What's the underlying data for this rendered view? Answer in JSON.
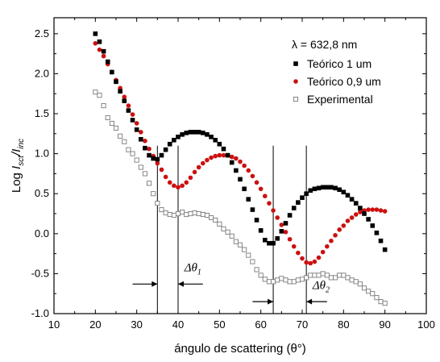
{
  "chart_data": {
    "type": "scatter",
    "title": "",
    "xlabel": "ángulo de scattering (θ°)",
    "ylabel": "Log I_sct/I_inc",
    "xlim": [
      10,
      100
    ],
    "ylim": [
      -1.0,
      2.7
    ],
    "x_ticks": [
      "10",
      "20",
      "30",
      "40",
      "50",
      "60",
      "70",
      "80",
      "90",
      "100"
    ],
    "y_ticks": [
      "-1.0",
      "-0.5",
      "0.0",
      "0.5",
      "1.0",
      "1.5",
      "2.0",
      "2.5"
    ],
    "grid": false,
    "legend": {
      "position": "top-right",
      "header": "λ = 632,8 nm",
      "entries": [
        "Teórico 1 um",
        "Teórico 0,9 um",
        "Experimental"
      ]
    },
    "series": [
      {
        "name": "Teórico 1 um",
        "marker": "filled-square",
        "color": "#000000",
        "x": [
          20,
          21,
          22,
          23,
          24,
          25,
          26,
          27,
          28,
          29,
          30,
          31,
          32,
          33,
          34,
          35,
          36,
          37,
          38,
          39,
          40,
          41,
          42,
          43,
          44,
          45,
          46,
          47,
          48,
          49,
          50,
          51,
          52,
          53,
          54,
          55,
          56,
          57,
          58,
          59,
          60,
          61,
          62,
          63,
          64,
          65,
          66,
          67,
          68,
          69,
          70,
          71,
          72,
          73,
          74,
          75,
          76,
          77,
          78,
          79,
          80,
          81,
          82,
          83,
          84,
          85,
          86,
          87,
          88,
          89,
          90
        ],
        "y": [
          2.5,
          2.4,
          2.28,
          2.15,
          2.02,
          1.9,
          1.78,
          1.66,
          1.54,
          1.42,
          1.3,
          1.18,
          1.07,
          0.98,
          0.94,
          0.93,
          0.98,
          1.05,
          1.12,
          1.17,
          1.21,
          1.24,
          1.26,
          1.27,
          1.27,
          1.27,
          1.26,
          1.24,
          1.21,
          1.17,
          1.12,
          1.06,
          0.98,
          0.89,
          0.79,
          0.68,
          0.56,
          0.43,
          0.3,
          0.17,
          0.04,
          -0.08,
          -0.12,
          -0.12,
          -0.06,
          0.03,
          0.13,
          0.23,
          0.32,
          0.39,
          0.45,
          0.5,
          0.54,
          0.56,
          0.57,
          0.58,
          0.58,
          0.58,
          0.57,
          0.55,
          0.52,
          0.48,
          0.43,
          0.38,
          0.32,
          0.25,
          0.18,
          0.1,
          0.01,
          -0.09,
          -0.2
        ]
      },
      {
        "name": "Teórico 0,9 um",
        "marker": "filled-circle",
        "color": "#cc1010",
        "x": [
          20,
          21,
          22,
          23,
          24,
          25,
          26,
          27,
          28,
          29,
          30,
          31,
          32,
          33,
          34,
          35,
          36,
          37,
          38,
          39,
          40,
          41,
          42,
          43,
          44,
          45,
          46,
          47,
          48,
          49,
          50,
          51,
          52,
          53,
          54,
          55,
          56,
          57,
          58,
          59,
          60,
          61,
          62,
          63,
          64,
          65,
          66,
          67,
          68,
          69,
          70,
          71,
          72,
          73,
          74,
          75,
          76,
          77,
          78,
          79,
          80,
          81,
          82,
          83,
          84,
          85,
          86,
          87,
          88,
          89,
          90
        ],
        "y": [
          2.38,
          2.3,
          2.22,
          2.12,
          2.02,
          1.92,
          1.82,
          1.71,
          1.6,
          1.49,
          1.38,
          1.27,
          1.16,
          1.06,
          0.97,
          0.88,
          0.8,
          0.71,
          0.64,
          0.6,
          0.58,
          0.6,
          0.64,
          0.7,
          0.77,
          0.83,
          0.88,
          0.92,
          0.95,
          0.97,
          0.98,
          0.98,
          0.98,
          0.96,
          0.94,
          0.9,
          0.85,
          0.79,
          0.72,
          0.64,
          0.56,
          0.47,
          0.38,
          0.29,
          0.2,
          0.11,
          0.02,
          -0.07,
          -0.16,
          -0.24,
          -0.31,
          -0.36,
          -0.37,
          -0.35,
          -0.3,
          -0.23,
          -0.16,
          -0.09,
          -0.02,
          0.05,
          0.1,
          0.16,
          0.2,
          0.24,
          0.27,
          0.29,
          0.3,
          0.3,
          0.3,
          0.29,
          0.28
        ]
      },
      {
        "name": "Experimental",
        "marker": "open-square",
        "color": "#7a7a7a",
        "x": [
          20,
          21,
          22,
          23,
          24,
          25,
          26,
          27,
          28,
          29,
          30,
          31,
          32,
          33,
          34,
          35,
          36,
          37,
          38,
          39,
          40,
          41,
          42,
          43,
          44,
          45,
          46,
          47,
          48,
          49,
          50,
          51,
          52,
          53,
          54,
          55,
          56,
          57,
          58,
          59,
          60,
          61,
          62,
          63,
          64,
          65,
          66,
          67,
          68,
          69,
          70,
          71,
          72,
          73,
          74,
          75,
          76,
          77,
          78,
          79,
          80,
          81,
          82,
          83,
          84,
          85,
          86,
          87,
          88,
          89,
          90
        ],
        "y": [
          1.77,
          1.73,
          1.6,
          1.45,
          1.38,
          1.32,
          1.22,
          1.15,
          1.05,
          1.0,
          0.92,
          0.83,
          0.75,
          0.63,
          0.5,
          0.38,
          0.3,
          0.26,
          0.24,
          0.23,
          0.25,
          0.27,
          0.24,
          0.25,
          0.26,
          0.25,
          0.24,
          0.23,
          0.2,
          0.17,
          0.12,
          0.06,
          0.02,
          -0.03,
          -0.1,
          -0.14,
          -0.2,
          -0.27,
          -0.35,
          -0.45,
          -0.52,
          -0.57,
          -0.6,
          -0.6,
          -0.58,
          -0.56,
          -0.58,
          -0.6,
          -0.6,
          -0.58,
          -0.57,
          -0.55,
          -0.52,
          -0.52,
          -0.52,
          -0.5,
          -0.52,
          -0.55,
          -0.55,
          -0.52,
          -0.52,
          -0.55,
          -0.58,
          -0.6,
          -0.63,
          -0.68,
          -0.72,
          -0.75,
          -0.8,
          -0.85,
          -0.87
        ]
      }
    ],
    "annotations": {
      "vlines": [
        35,
        40,
        63,
        71
      ],
      "delta_theta_1": {
        "label": "Δθ",
        "subscript": "1"
      },
      "delta_theta_2": {
        "label": "Δθ",
        "subscript": "2"
      }
    }
  }
}
